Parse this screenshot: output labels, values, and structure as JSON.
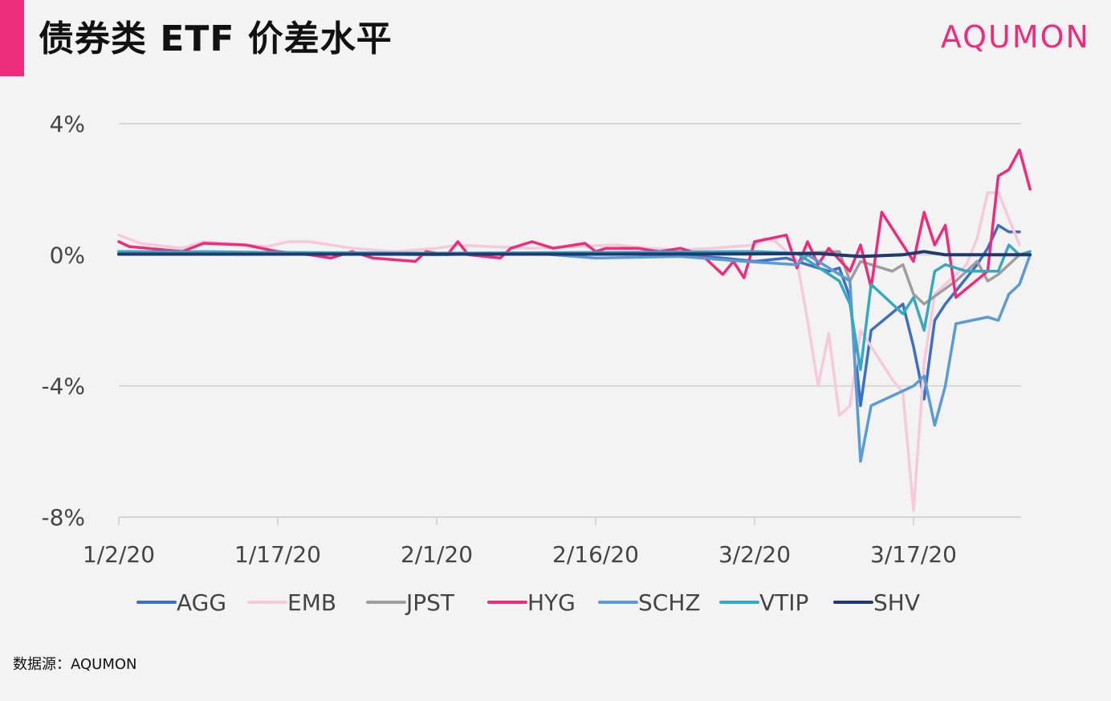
{
  "header": {
    "title": "债券类 ETF 价差水平",
    "brand": "AQUMON",
    "source": "数据源：AQUMON"
  },
  "chart_data": {
    "type": "line",
    "title": "债券类 ETF 价差水平",
    "xlabel": "",
    "ylabel": "",
    "ylim": [
      -8,
      4
    ],
    "yticks": [
      4,
      0,
      -4,
      -8
    ],
    "ytick_labels": [
      "4%",
      "0%",
      "-4%",
      "-8%"
    ],
    "x_axis": {
      "start": "2020-01-02",
      "end": "2020-03-27"
    },
    "xticks": [
      {
        "date": "2020-01-02",
        "label": "1/2/20"
      },
      {
        "date": "2020-01-17",
        "label": "1/17/20"
      },
      {
        "date": "2020-02-01",
        "label": "2/1/20"
      },
      {
        "date": "2020-02-16",
        "label": "2/16/20"
      },
      {
        "date": "2020-03-02",
        "label": "3/2/20"
      },
      {
        "date": "2020-03-17",
        "label": "3/17/20"
      }
    ],
    "grid": true,
    "legend_position": "bottom",
    "series": [
      {
        "name": "AGG",
        "color": "#3f6fc2",
        "points": [
          [
            "2020-01-02",
            0.1
          ],
          [
            "2020-01-10",
            0.05
          ],
          [
            "2020-01-20",
            0.05
          ],
          [
            "2020-02-01",
            0.05
          ],
          [
            "2020-02-16",
            0.05
          ],
          [
            "2020-02-24",
            0.0
          ],
          [
            "2020-02-28",
            -0.1
          ],
          [
            "2020-03-02",
            -0.2
          ],
          [
            "2020-03-05",
            -0.1
          ],
          [
            "2020-03-08",
            -0.4
          ],
          [
            "2020-03-09",
            -0.5
          ],
          [
            "2020-03-10",
            -0.4
          ],
          [
            "2020-03-11",
            -1.3
          ],
          [
            "2020-03-12",
            -4.6
          ],
          [
            "2020-03-13",
            -2.3
          ],
          [
            "2020-03-16",
            -1.5
          ],
          [
            "2020-03-17",
            -2.8
          ],
          [
            "2020-03-18",
            -4.4
          ],
          [
            "2020-03-19",
            -2.0
          ],
          [
            "2020-03-20",
            -1.5
          ],
          [
            "2020-03-23",
            -0.3
          ],
          [
            "2020-03-24",
            0.2
          ],
          [
            "2020-03-25",
            0.9
          ],
          [
            "2020-03-26",
            0.7
          ],
          [
            "2020-03-27",
            0.7
          ]
        ]
      },
      {
        "name": "EMB",
        "color": "#f7c9dc",
        "points": [
          [
            "2020-01-02",
            0.6
          ],
          [
            "2020-01-04",
            0.35
          ],
          [
            "2020-01-08",
            0.2
          ],
          [
            "2020-01-10",
            0.4
          ],
          [
            "2020-01-14",
            0.3
          ],
          [
            "2020-01-16",
            0.25
          ],
          [
            "2020-01-18",
            0.4
          ],
          [
            "2020-01-20",
            0.4
          ],
          [
            "2020-01-24",
            0.2
          ],
          [
            "2020-01-28",
            0.1
          ],
          [
            "2020-02-01",
            0.2
          ],
          [
            "2020-02-03",
            0.3
          ],
          [
            "2020-02-06",
            0.25
          ],
          [
            "2020-02-10",
            0.2
          ],
          [
            "2020-02-14",
            0.25
          ],
          [
            "2020-02-18",
            0.3
          ],
          [
            "2020-02-21",
            0.2
          ],
          [
            "2020-02-24",
            0.15
          ],
          [
            "2020-02-27",
            0.2
          ],
          [
            "2020-03-02",
            0.3
          ],
          [
            "2020-03-03",
            0.5
          ],
          [
            "2020-03-04",
            0.4
          ],
          [
            "2020-03-06",
            -0.2
          ],
          [
            "2020-03-07",
            -2.0
          ],
          [
            "2020-03-08",
            -4.0
          ],
          [
            "2020-03-09",
            -2.4
          ],
          [
            "2020-03-10",
            -4.9
          ],
          [
            "2020-03-11",
            -4.6
          ],
          [
            "2020-03-12",
            -2.3
          ],
          [
            "2020-03-15",
            -3.8
          ],
          [
            "2020-03-16",
            -4.2
          ],
          [
            "2020-03-17",
            -7.8
          ],
          [
            "2020-03-18",
            -3.3
          ],
          [
            "2020-03-19",
            -1.2
          ],
          [
            "2020-03-22",
            -0.3
          ],
          [
            "2020-03-23",
            0.5
          ],
          [
            "2020-03-24",
            1.9
          ],
          [
            "2020-03-25",
            1.9
          ],
          [
            "2020-03-26",
            1.1
          ],
          [
            "2020-03-27",
            0.3
          ]
        ]
      },
      {
        "name": "JPST",
        "color": "#9e9e9e",
        "points": [
          [
            "2020-01-02",
            0.05
          ],
          [
            "2020-02-01",
            0.05
          ],
          [
            "2020-03-02",
            0.05
          ],
          [
            "2020-03-06",
            0.05
          ],
          [
            "2020-03-10",
            0.1
          ],
          [
            "2020-03-11",
            -0.8
          ],
          [
            "2020-03-12",
            -0.2
          ],
          [
            "2020-03-15",
            -0.5
          ],
          [
            "2020-03-16",
            -0.3
          ],
          [
            "2020-03-17",
            -1.2
          ],
          [
            "2020-03-18",
            -1.5
          ],
          [
            "2020-03-21",
            -0.8
          ],
          [
            "2020-03-23",
            -0.2
          ],
          [
            "2020-03-24",
            -0.8
          ],
          [
            "2020-03-25",
            -0.6
          ],
          [
            "2020-03-27",
            0.0
          ]
        ]
      },
      {
        "name": "HYG",
        "color": "#ee2c7c",
        "points": [
          [
            "2020-01-02",
            0.4
          ],
          [
            "2020-01-03",
            0.25
          ],
          [
            "2020-01-08",
            0.1
          ],
          [
            "2020-01-10",
            0.35
          ],
          [
            "2020-01-14",
            0.3
          ],
          [
            "2020-01-17",
            0.1
          ],
          [
            "2020-01-20",
            0.0
          ],
          [
            "2020-01-22",
            -0.1
          ],
          [
            "2020-01-24",
            0.1
          ],
          [
            "2020-01-26",
            -0.1
          ],
          [
            "2020-01-30",
            -0.2
          ],
          [
            "2020-01-31",
            0.1
          ],
          [
            "2020-02-02",
            0.0
          ],
          [
            "2020-02-03",
            0.4
          ],
          [
            "2020-02-04",
            0.0
          ],
          [
            "2020-02-07",
            -0.1
          ],
          [
            "2020-02-08",
            0.2
          ],
          [
            "2020-02-10",
            0.4
          ],
          [
            "2020-02-12",
            0.2
          ],
          [
            "2020-02-15",
            0.35
          ],
          [
            "2020-02-16",
            0.1
          ],
          [
            "2020-02-17",
            0.2
          ],
          [
            "2020-02-20",
            0.2
          ],
          [
            "2020-02-22",
            0.1
          ],
          [
            "2020-02-24",
            0.2
          ],
          [
            "2020-02-26",
            0.0
          ],
          [
            "2020-02-28",
            -0.6
          ],
          [
            "2020-02-29",
            -0.2
          ],
          [
            "2020-03-01",
            -0.7
          ],
          [
            "2020-03-02",
            0.4
          ],
          [
            "2020-03-05",
            0.6
          ],
          [
            "2020-03-06",
            -0.4
          ],
          [
            "2020-03-07",
            0.4
          ],
          [
            "2020-03-08",
            -0.3
          ],
          [
            "2020-03-09",
            0.2
          ],
          [
            "2020-03-11",
            -0.5
          ],
          [
            "2020-03-12",
            0.3
          ],
          [
            "2020-03-13",
            -1.0
          ],
          [
            "2020-03-14",
            1.3
          ],
          [
            "2020-03-17",
            -0.2
          ],
          [
            "2020-03-18",
            1.3
          ],
          [
            "2020-03-19",
            0.3
          ],
          [
            "2020-03-20",
            0.9
          ],
          [
            "2020-03-21",
            -1.3
          ],
          [
            "2020-03-24",
            -0.5
          ],
          [
            "2020-03-25",
            2.4
          ],
          [
            "2020-03-26",
            2.6
          ],
          [
            "2020-03-27",
            3.2
          ],
          [
            "2020-03-28",
            2.0
          ]
        ]
      },
      {
        "name": "SCHZ",
        "color": "#5b9bd5",
        "points": [
          [
            "2020-01-02",
            0.05
          ],
          [
            "2020-01-10",
            0.1
          ],
          [
            "2020-01-20",
            0.05
          ],
          [
            "2020-02-01",
            0.0
          ],
          [
            "2020-02-10",
            0.05
          ],
          [
            "2020-02-16",
            -0.1
          ],
          [
            "2020-02-24",
            -0.05
          ],
          [
            "2020-03-01",
            -0.2
          ],
          [
            "2020-03-06",
            -0.3
          ],
          [
            "2020-03-07",
            0.0
          ],
          [
            "2020-03-10",
            -0.6
          ],
          [
            "2020-03-11",
            -0.8
          ],
          [
            "2020-03-12",
            -6.3
          ],
          [
            "2020-03-13",
            -4.6
          ],
          [
            "2020-03-17",
            -4.0
          ],
          [
            "2020-03-18",
            -3.7
          ],
          [
            "2020-03-19",
            -5.2
          ],
          [
            "2020-03-20",
            -4.0
          ],
          [
            "2020-03-21",
            -2.1
          ],
          [
            "2020-03-24",
            -1.9
          ],
          [
            "2020-03-25",
            -2.0
          ],
          [
            "2020-03-26",
            -1.2
          ],
          [
            "2020-03-27",
            -0.9
          ],
          [
            "2020-03-28",
            0.0
          ]
        ]
      },
      {
        "name": "VTIP",
        "color": "#36a9c1",
        "points": [
          [
            "2020-01-02",
            0.1
          ],
          [
            "2020-02-01",
            0.05
          ],
          [
            "2020-03-02",
            0.1
          ],
          [
            "2020-03-06",
            0.05
          ],
          [
            "2020-03-10",
            -0.8
          ],
          [
            "2020-03-11",
            -1.5
          ],
          [
            "2020-03-12",
            -3.5
          ],
          [
            "2020-03-13",
            -0.9
          ],
          [
            "2020-03-16",
            -1.8
          ],
          [
            "2020-03-17",
            -1.3
          ],
          [
            "2020-03-18",
            -2.3
          ],
          [
            "2020-03-19",
            -0.5
          ],
          [
            "2020-03-20",
            -0.3
          ],
          [
            "2020-03-22",
            -0.5
          ],
          [
            "2020-03-25",
            -0.5
          ],
          [
            "2020-03-26",
            0.3
          ],
          [
            "2020-03-27",
            0.0
          ],
          [
            "2020-03-28",
            0.1
          ]
        ]
      },
      {
        "name": "SHV",
        "color": "#1e3a6e",
        "points": [
          [
            "2020-01-02",
            0.02
          ],
          [
            "2020-01-20",
            0.02
          ],
          [
            "2020-02-01",
            0.02
          ],
          [
            "2020-02-16",
            0.02
          ],
          [
            "2020-03-02",
            0.03
          ],
          [
            "2020-03-08",
            0.04
          ],
          [
            "2020-03-12",
            -0.05
          ],
          [
            "2020-03-16",
            0.0
          ],
          [
            "2020-03-18",
            0.1
          ],
          [
            "2020-03-20",
            0.0
          ],
          [
            "2020-03-24",
            0.0
          ],
          [
            "2020-03-28",
            0.0
          ]
        ]
      }
    ]
  }
}
